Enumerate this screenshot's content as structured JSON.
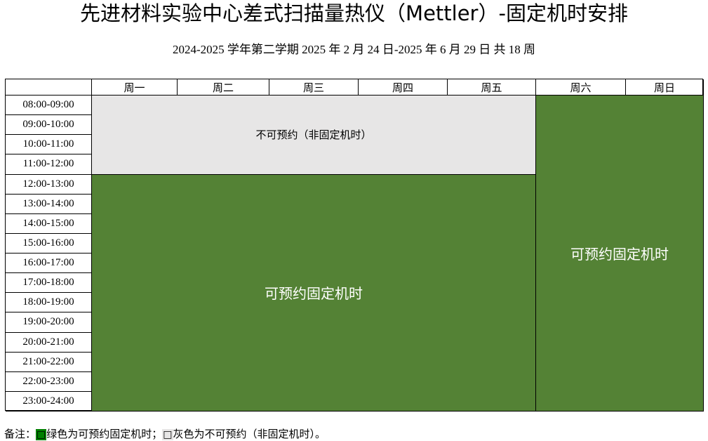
{
  "title": "先进材料实验中心差式扫描量热仪（Mettler）-固定机时安排",
  "subtitle": "2024-2025 学年第二学期  2025 年 2 月 24 日-2025 年 6 月 29 日  共 18 周",
  "days": [
    "周一",
    "周二",
    "周三",
    "周四",
    "周五",
    "周六",
    "周日"
  ],
  "times": [
    "08:00-09:00",
    "09:00-10:00",
    "10:00-11:00",
    "11:00-12:00",
    "12:00-13:00",
    "13:00-14:00",
    "14:00-15:00",
    "15:00-16:00",
    "16:00-17:00",
    "17:00-18:00",
    "18:00-19:00",
    "19:00-20:00",
    "20:00-21:00",
    "21:00-22:00",
    "22:00-23:00",
    "23:00-24:00"
  ],
  "blocks": {
    "weekday_morning": "不可预约（非固定机时）",
    "weekday_afternoon": "可预约固定机时",
    "weekend": "可预约固定机时"
  },
  "colors": {
    "available": "#548235",
    "unavailable": "#e7e6e6"
  },
  "note": {
    "prefix": "备注：",
    "green_swatch": "□",
    "green_text": "绿色为可预约固定机时；",
    "gray_swatch": "□",
    "gray_text": "灰色为不可预约（非固定机时）。"
  }
}
